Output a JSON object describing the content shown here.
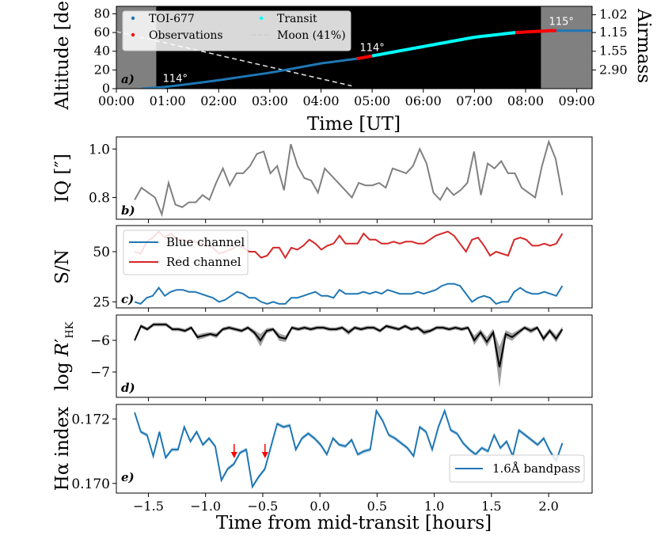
{
  "chart_data": [
    {
      "panel": "a",
      "type": "line",
      "panel_label": "a)",
      "xlabel": "Time [UT]",
      "ylabel": "Altitude [deg]",
      "y2label": "Airmass",
      "xlim": [
        0,
        9.3
      ],
      "ylim": [
        0,
        88
      ],
      "xticks": [
        0,
        1,
        2,
        3,
        4,
        5,
        6,
        7,
        8,
        9
      ],
      "xtick_labels": [
        "00:00",
        "01:00",
        "02:00",
        "03:00",
        "04:00",
        "05:00",
        "06:00",
        "07:00",
        "08:00",
        "09:00"
      ],
      "yticks": [
        0,
        20,
        40,
        60,
        80
      ],
      "y2ticks": [
        {
          "label": "1.02",
          "alt": 79
        },
        {
          "label": "1.15",
          "alt": 60
        },
        {
          "label": "1.55",
          "alt": 40
        },
        {
          "label": "2.90",
          "alt": 20
        }
      ],
      "twilight_spans": [
        [
          0,
          0.78
        ],
        [
          8.3,
          9.3
        ]
      ],
      "target_curve": {
        "x": [
          0.5,
          1,
          2,
          3,
          4,
          4.7,
          5,
          6,
          7,
          7.8,
          8.5,
          9.3
        ],
        "y": [
          0,
          2,
          9,
          17,
          27,
          32,
          35,
          45,
          55,
          60,
          62,
          62
        ]
      },
      "transit_span": [
        5.0,
        7.8
      ],
      "observation_spans": [
        [
          4.7,
          5.0
        ],
        [
          7.8,
          8.6
        ]
      ],
      "moon_curve": {
        "x": [
          0,
          4.6
        ],
        "y": [
          61,
          3
        ]
      },
      "annotations": [
        {
          "text": "114°",
          "x": 1.15,
          "y": 7
        },
        {
          "text": "114°",
          "x": 5.0,
          "y": 40
        },
        {
          "text": "115°",
          "x": 8.7,
          "y": 68
        }
      ],
      "legend": [
        {
          "label": "TOI-677",
          "color": "#1f77b4",
          "kind": "dot"
        },
        {
          "label": "Transit",
          "color": "#00ffff",
          "kind": "dot"
        },
        {
          "label": "Observations",
          "color": "#ff0000",
          "kind": "dot"
        },
        {
          "label": "Moon (41%)",
          "color": "#cccccc",
          "kind": "dash"
        }
      ]
    },
    {
      "panel": "b",
      "type": "line",
      "panel_label": "b)",
      "ylabel": "IQ [″]",
      "ylim": [
        0.71,
        1.05
      ],
      "yticks": [
        0.8,
        1.0
      ],
      "ytick_labels": [
        "0.8",
        "1.0"
      ],
      "series": [
        {
          "name": "IQ",
          "color": "#808080",
          "values": [
            0.79,
            0.84,
            0.82,
            0.8,
            0.73,
            0.86,
            0.77,
            0.76,
            0.78,
            0.78,
            0.81,
            0.79,
            0.86,
            0.92,
            0.85,
            0.9,
            0.9,
            0.93,
            0.98,
            0.99,
            0.9,
            0.93,
            0.83,
            1.02,
            0.93,
            0.88,
            0.87,
            0.82,
            0.92,
            0.89,
            0.86,
            0.83,
            0.8,
            0.86,
            0.85,
            0.85,
            0.86,
            0.84,
            0.92,
            0.91,
            0.9,
            0.93,
            1.0,
            0.94,
            0.82,
            0.79,
            0.84,
            0.81,
            0.83,
            0.86,
            0.99,
            0.81,
            0.94,
            0.92,
            0.95,
            0.9,
            0.9,
            0.84,
            0.82,
            0.8,
            0.93,
            1.03,
            0.96,
            0.81
          ]
        }
      ]
    },
    {
      "panel": "c",
      "type": "line",
      "panel_label": "c)",
      "ylabel": "S/N",
      "ylim": [
        22,
        63
      ],
      "yticks": [
        25,
        50
      ],
      "ytick_labels": [
        "25",
        "50"
      ],
      "series": [
        {
          "name": "Blue channel",
          "color": "#1f77b4",
          "values": [
            25,
            24,
            27,
            28,
            32,
            28,
            30,
            31,
            31,
            30,
            30,
            29,
            28,
            27,
            25,
            26,
            28,
            30,
            29,
            27,
            27,
            25,
            24,
            25,
            24,
            24,
            27,
            27,
            28,
            29,
            30,
            28,
            28,
            27,
            31,
            29,
            29,
            29,
            30,
            29,
            30,
            29,
            31,
            30,
            29,
            29,
            29,
            30,
            29,
            30,
            31,
            33,
            34,
            34,
            33,
            29,
            25,
            27,
            28,
            27,
            24,
            25,
            25,
            30,
            32,
            30,
            29,
            29,
            30,
            29,
            28,
            33
          ]
        },
        {
          "name": "Red channel",
          "color": "#d62728",
          "values": [
            50,
            49,
            55,
            57,
            60,
            57,
            59,
            56,
            56,
            55,
            55,
            54,
            53,
            52,
            49,
            50,
            51,
            53,
            52,
            50,
            50,
            47,
            48,
            52,
            52,
            47,
            52,
            51,
            53,
            56,
            54,
            51,
            53,
            54,
            58,
            54,
            54,
            54,
            59,
            56,
            56,
            54,
            54,
            55,
            54,
            55,
            55,
            54,
            54,
            56,
            58,
            59,
            60,
            58,
            54,
            50,
            56,
            57,
            53,
            48,
            50,
            49,
            48,
            56,
            57,
            56,
            53,
            53,
            54,
            53,
            54,
            59
          ]
        }
      ],
      "legend": [
        "Blue channel",
        "Red channel"
      ]
    },
    {
      "panel": "d",
      "type": "area",
      "panel_label": "d)",
      "ylabel": "log R′HK",
      "ylim": [
        -7.8,
        -5.2
      ],
      "yticks": [
        -7,
        -6
      ],
      "ytick_labels": [
        "−7",
        "−6"
      ],
      "series": [
        {
          "name": "log R'HK",
          "color": "#000000",
          "values": [
            -6.0,
            -5.55,
            -5.65,
            -5.5,
            -5.5,
            -5.5,
            -5.65,
            -5.65,
            -5.7,
            -5.6,
            -5.9,
            -5.85,
            -5.8,
            -5.85,
            -5.65,
            -5.6,
            -5.65,
            -5.7,
            -5.6,
            -5.75,
            -6.0,
            -5.7,
            -5.65,
            -5.9,
            -5.95,
            -5.6,
            -5.65,
            -5.6,
            -5.65,
            -5.6,
            -5.6,
            -5.65,
            -5.65,
            -5.6,
            -5.75,
            -5.6,
            -5.65,
            -5.6,
            -5.6,
            -5.7,
            -5.55,
            -5.6,
            -5.65,
            -5.55,
            -5.65,
            -5.6,
            -5.75,
            -5.7,
            -5.6,
            -5.6,
            -5.65,
            -5.6,
            -5.65,
            -5.6,
            -6.0,
            -5.75,
            -6.05,
            -5.75,
            -6.85,
            -5.8,
            -5.9,
            -5.75,
            -5.6,
            -5.7,
            -5.6,
            -5.95,
            -5.7,
            -5.95,
            -5.65
          ]
        }
      ],
      "error": [
        0.06,
        0.06,
        0.06,
        0.06,
        0.06,
        0.06,
        0.06,
        0.06,
        0.06,
        0.06,
        0.08,
        0.08,
        0.06,
        0.08,
        0.06,
        0.06,
        0.06,
        0.06,
        0.06,
        0.08,
        0.2,
        0.08,
        0.06,
        0.12,
        0.1,
        0.06,
        0.06,
        0.06,
        0.06,
        0.06,
        0.06,
        0.06,
        0.06,
        0.06,
        0.08,
        0.06,
        0.06,
        0.06,
        0.06,
        0.06,
        0.06,
        0.06,
        0.06,
        0.06,
        0.06,
        0.06,
        0.08,
        0.06,
        0.06,
        0.06,
        0.06,
        0.06,
        0.06,
        0.06,
        0.15,
        0.1,
        0.15,
        0.12,
        0.65,
        0.12,
        0.12,
        0.08,
        0.06,
        0.08,
        0.06,
        0.1,
        0.08,
        0.12,
        0.08
      ]
    },
    {
      "panel": "e",
      "type": "line",
      "panel_label": "e)",
      "ylabel": "Hα index",
      "xlabel": "Time from mid-transit [hours]",
      "xlim": [
        -1.78,
        2.38
      ],
      "xticks": [
        -1.5,
        -1.0,
        -0.5,
        0,
        0.5,
        1.0,
        1.5,
        2.0
      ],
      "xtick_labels": [
        "−1.5",
        "−1.0",
        "−0.5",
        "0.0",
        "0.5",
        "1.0",
        "1.5",
        "2.0"
      ],
      "ylim": [
        0.1697,
        0.17245
      ],
      "yticks": [
        0.17,
        0.172
      ],
      "ytick_labels": [
        "0.170",
        "0.172"
      ],
      "series": [
        {
          "name": "1.6Å bandpass",
          "color": "#1f77b4",
          "values": [
            0.1722,
            0.1716,
            0.1715,
            0.17085,
            0.1716,
            0.1708,
            0.17105,
            0.17105,
            0.17175,
            0.1713,
            0.1716,
            0.1712,
            0.1714,
            0.17115,
            0.1701,
            0.17045,
            0.1706,
            0.17095,
            0.17105,
            0.1699,
            0.1702,
            0.17045,
            0.17115,
            0.17185,
            0.17175,
            0.1718,
            0.17105,
            0.1714,
            0.17155,
            0.1714,
            0.1712,
            0.1709,
            0.1714,
            0.1712,
            0.17115,
            0.17135,
            0.1709,
            0.171,
            0.17105,
            0.17225,
            0.17195,
            0.1715,
            0.1714,
            0.17125,
            0.1711,
            0.17085,
            0.17175,
            0.1716,
            0.17105,
            0.17175,
            0.17225,
            0.17165,
            0.17155,
            0.17125,
            0.17105,
            0.1709,
            0.1711,
            0.171,
            0.1715,
            0.1711,
            0.1713,
            0.17085,
            0.17165,
            0.1715,
            0.17135,
            0.1712,
            0.1714,
            0.171,
            0.1707,
            0.17125
          ]
        }
      ],
      "arrows": [
        {
          "x": -0.75
        },
        {
          "x": -0.48
        }
      ],
      "legend": [
        "1.6Å bandpass"
      ]
    }
  ]
}
